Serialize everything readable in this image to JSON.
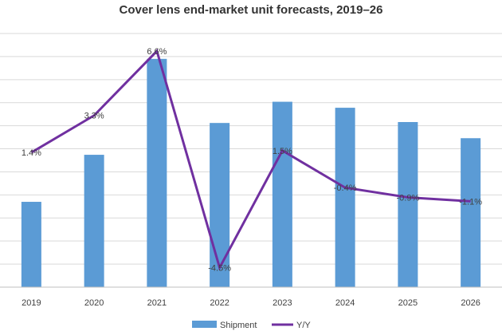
{
  "chart_data": {
    "type": "bar",
    "title": "Cover lens end-market unit forecasts, 2019–26",
    "categories": [
      "2019",
      "2020",
      "2021",
      "2022",
      "2023",
      "2024",
      "2025",
      "2026"
    ],
    "series": [
      {
        "name": "Shipment",
        "type": "bar",
        "color": "#5b9bd5",
        "axis": "primary",
        "values": [
          1.85,
          2.87,
          4.95,
          3.56,
          4.02,
          3.89,
          3.58,
          3.23
        ]
      },
      {
        "name": "Y/Y",
        "type": "line",
        "color": "#7030a0",
        "axis": "secondary",
        "values": [
          1.4,
          3.3,
          6.6,
          -4.5,
          1.5,
          -0.4,
          -0.9,
          -1.1
        ],
        "labels": [
          "1.4%",
          "3.3%",
          "6.6%",
          "-4.5%",
          "1.5%",
          "-0.4%",
          "-0.9%",
          "-1.1%"
        ]
      }
    ],
    "ylim": [
      0,
      5.5
    ],
    "y2lim": [
      -5.5,
      7.5
    ],
    "grid": true,
    "legend": "bottom"
  }
}
